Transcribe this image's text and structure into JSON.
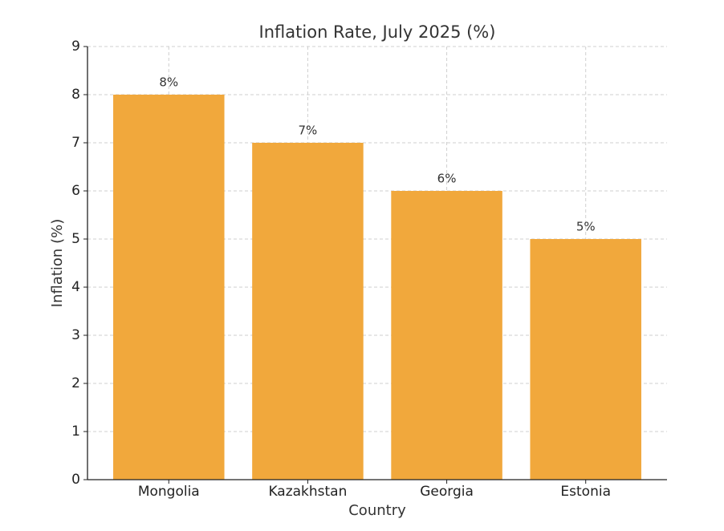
{
  "chart_data": {
    "type": "bar",
    "title": "Inflation Rate, July 2025 (%)",
    "x_label": "Country",
    "y_label": "Inflation (%)",
    "categories": [
      "Mongolia",
      "Kazakhstan",
      "Georgia",
      "Estonia"
    ],
    "values": [
      8,
      7,
      6,
      5
    ],
    "value_labels": [
      "8%",
      "7%",
      "6%",
      "5%"
    ],
    "color": "#f1a83c",
    "ylim": [
      0,
      9
    ],
    "yticks": [
      0,
      1,
      2,
      3,
      4,
      5,
      6,
      7,
      8,
      9
    ],
    "grid": true
  }
}
